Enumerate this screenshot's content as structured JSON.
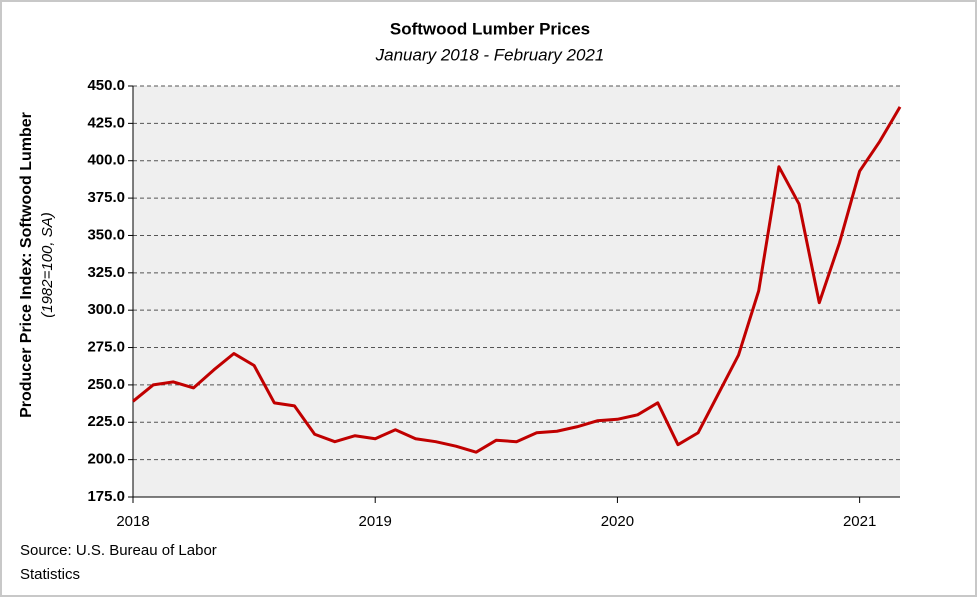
{
  "chart_data": {
    "type": "line",
    "title": "Softwood Lumber Prices",
    "subtitle": "January 2018 - February 2021",
    "y_label": "Producer Price Index: Softwood Lumber",
    "y_label_note": "(1982=100, SA)",
    "source": [
      "Source: U.S. Bureau of Labor",
      "Statistics"
    ],
    "categories": [
      "2018",
      null,
      null,
      null,
      null,
      null,
      null,
      null,
      null,
      null,
      null,
      null,
      "2019",
      null,
      null,
      null,
      null,
      null,
      null,
      null,
      null,
      null,
      null,
      null,
      "2020",
      null,
      null,
      null,
      null,
      null,
      null,
      null,
      null,
      null,
      null,
      null,
      "2021",
      null,
      null
    ],
    "series": [
      {
        "name": "Softwood Lumber",
        "color": "#c00000",
        "values": [
          239,
          250,
          252,
          248,
          260,
          271,
          263,
          238,
          236,
          217,
          212,
          216,
          214,
          220,
          214,
          212,
          209,
          205,
          213,
          212,
          218,
          219,
          222,
          226,
          227,
          230,
          238,
          210,
          218,
          244,
          270,
          313,
          396,
          371,
          305,
          345,
          393,
          413,
          436
        ]
      }
    ],
    "ylim": [
      175,
      450
    ],
    "yticks": [
      {
        "value": 175,
        "label": "175.0"
      },
      {
        "value": 200,
        "label": "200.0"
      },
      {
        "value": 225,
        "label": "225.0"
      },
      {
        "value": 250,
        "label": "250.0"
      },
      {
        "value": 275,
        "label": "275.0"
      },
      {
        "value": 300,
        "label": "300.0"
      },
      {
        "value": 325,
        "label": "325.0"
      },
      {
        "value": 350,
        "label": "350.0"
      },
      {
        "value": 375,
        "label": "375.0"
      },
      {
        "value": 400,
        "label": "400.0"
      },
      {
        "value": 425,
        "label": "425.0"
      },
      {
        "value": 450,
        "label": "450.0"
      }
    ],
    "grid": true
  }
}
